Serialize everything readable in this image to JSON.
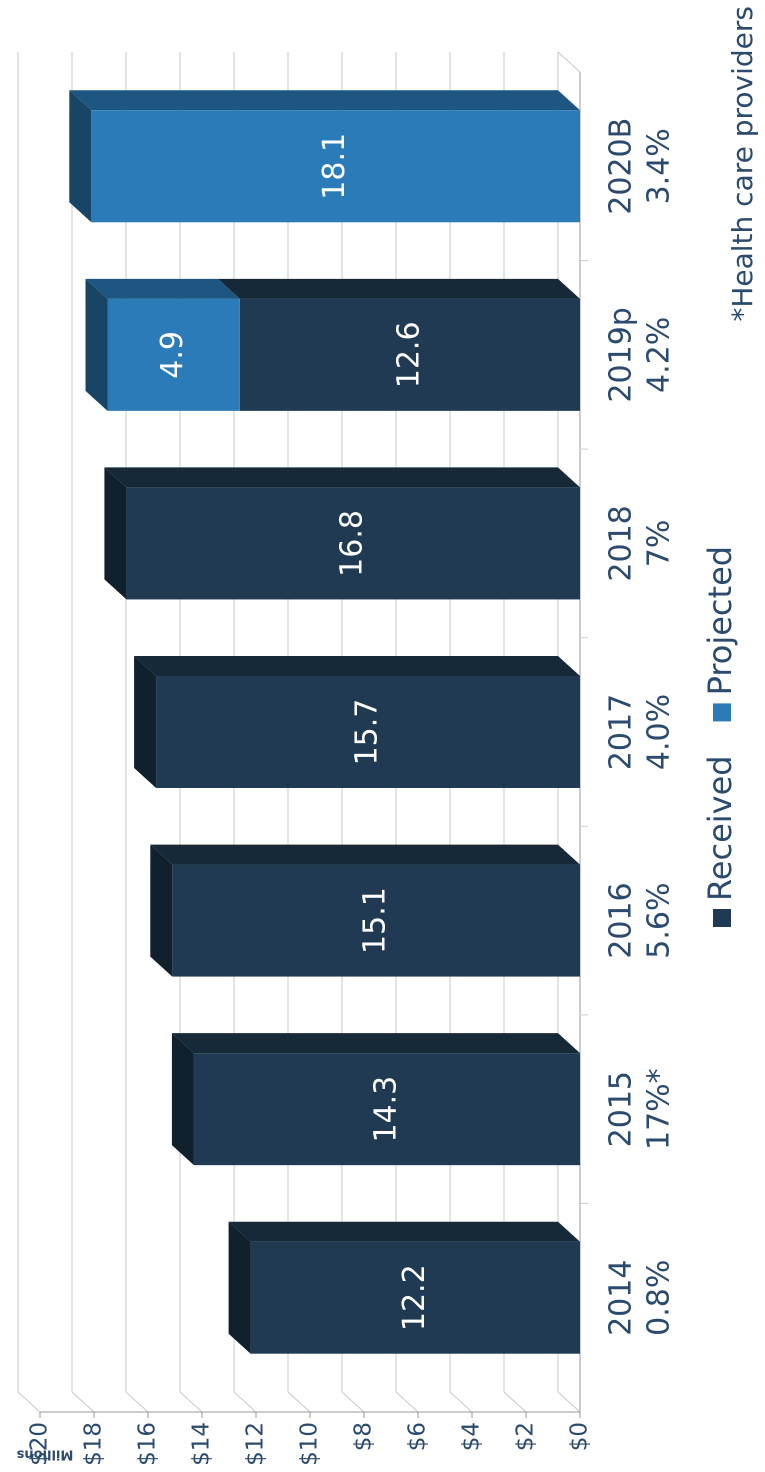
{
  "chart_data": {
    "type": "bar",
    "stacked": true,
    "categories": [
      "2014",
      "2015",
      "2016",
      "2017",
      "2018",
      "2019p",
      "2020B"
    ],
    "growth_labels": [
      "0.8%",
      "17%*",
      "5.6%",
      "4.0%",
      "7%",
      "4.2%",
      "3.4%"
    ],
    "series": [
      {
        "name": "Received",
        "color": "#1f3a52",
        "values": [
          12.2,
          14.3,
          15.1,
          15.7,
          16.8,
          12.6,
          null
        ]
      },
      {
        "name": "Projected",
        "color": "#2b7bb9",
        "values": [
          null,
          null,
          null,
          null,
          null,
          4.9,
          18.1
        ]
      }
    ],
    "ylim": [
      0,
      20
    ],
    "yticks": [
      {
        "value": 0,
        "label": "$0"
      },
      {
        "value": 2,
        "label": "$2"
      },
      {
        "value": 4,
        "label": "$4"
      },
      {
        "value": 6,
        "label": "$6"
      },
      {
        "value": 8,
        "label": "$8"
      },
      {
        "value": 10,
        "label": "$10"
      },
      {
        "value": 12,
        "label": "$12"
      },
      {
        "value": 14,
        "label": "$14"
      },
      {
        "value": 16,
        "label": "$16"
      },
      {
        "value": 18,
        "label": "$18"
      },
      {
        "value": 20,
        "label": "$20"
      }
    ],
    "y_label": "Millions",
    "footnote": "*Health care providers",
    "grid": true,
    "legend": "bottom"
  }
}
